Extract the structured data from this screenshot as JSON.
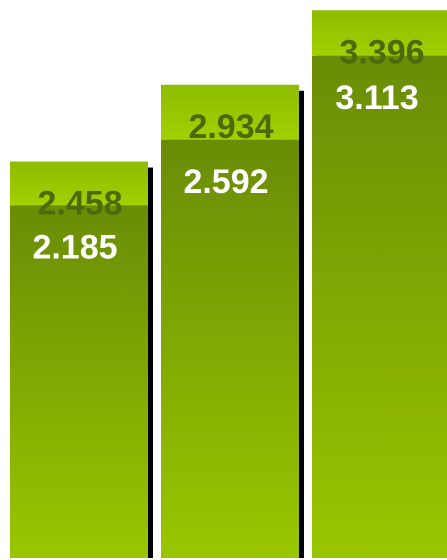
{
  "chart_data": {
    "type": "bar",
    "stacked": true,
    "categories": [
      "",
      "",
      ""
    ],
    "series": [
      {
        "values": [
          2.185,
          2.592,
          3.113
        ],
        "value_labels": [
          "2.185",
          "2.592",
          "3.113"
        ]
      },
      {
        "values": [
          0.273,
          0.342,
          0.283
        ],
        "total_labels": [
          "2.458",
          "2.934",
          "3.396"
        ]
      }
    ],
    "totals": [
      2.458,
      2.934,
      3.396
    ],
    "title": "",
    "xlabel": "",
    "ylabel": "",
    "ylim": [
      0,
      3.41
    ],
    "grid": false,
    "legend": "none",
    "colors": {
      "bottom_top": "#6a8c06",
      "bottom_bottom": "#99c600",
      "upper_top": "#8ebc00",
      "upper_bottom": "#a2d000",
      "bottom_label": "#ffffff",
      "upper_label": "#4c6a0b",
      "shadow": "#000000"
    }
  }
}
